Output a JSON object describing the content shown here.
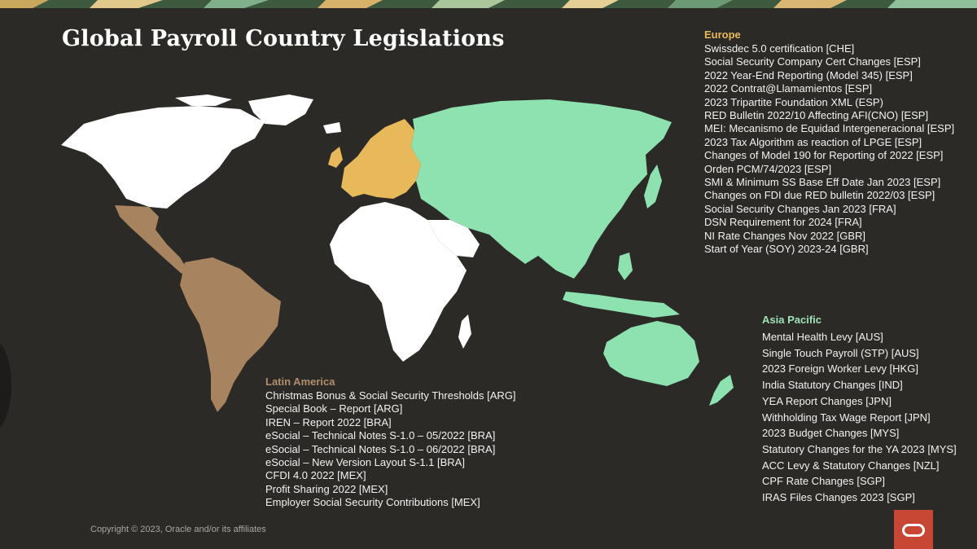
{
  "slide": {
    "title": "Global Payroll Country Legislations",
    "copyright": "Copyright © 2023, Oracle and/or its affiliates",
    "logo_icon": "oracle-logo-icon"
  },
  "colors": {
    "background": "#2b2a27",
    "europe": "#e8b95a",
    "latin_america": "#a7835f",
    "asia_pacific": "#8ee2b0",
    "other_land": "#ffffff",
    "oracle_red": "#c74634"
  },
  "regions": {
    "europe": {
      "heading": "Europe",
      "items": [
        "Swissdec 5.0 certification [CHE]",
        "Social Security Company Cert Changes [ESP]",
        "2022 Year-End Reporting (Model 345) [ESP]",
        "2022 Contrat@Llamamientos [ESP]",
        "2023 Tripartite Foundation XML (ESP)",
        "RED Bulletin 2022/10 Affecting AFI(CNO) [ESP]",
        "MEI: Mecanismo de Equidad Intergeneracional [ESP]",
        "2023 Tax Algorithm as reaction of LPGE [ESP]",
        "Changes of Model 190 for Reporting of 2022 [ESP]",
        "Orden PCM/74/2023 [ESP]",
        "SMI & Minimum SS Base Eff Date Jan 2023 [ESP]",
        "Changes on FDI due RED bulletin 2022/03 [ESP]",
        "Social Security Changes Jan 2023 [FRA]",
        "DSN Requirement for 2024 [FRA]",
        "NI Rate Changes Nov 2022 [GBR]",
        "Start of Year (SOY) 2023-24 [GBR]"
      ]
    },
    "latin_america": {
      "heading": "Latin America",
      "items": [
        "Christmas Bonus & Social Security Thresholds [ARG]",
        "Special Book – Report [ARG]",
        "IREN – Report 2022 [BRA]",
        "eSocial – Technical Notes S-1.0 – 05/2022 [BRA]",
        "eSocial – Technical Notes S-1.0 – 06/2022 [BRA]",
        "eSocial – New Version Layout S-1.1 [BRA]",
        "CFDI 4.0 2022 [MEX]",
        "Profit Sharing 2022 [MEX]",
        "Employer Social Security Contributions [MEX]"
      ]
    },
    "asia_pacific": {
      "heading": "Asia Pacific",
      "items": [
        "Mental Health Levy [AUS]",
        "Single Touch Payroll (STP) [AUS]",
        "2023 Foreign Worker Levy [HKG]",
        "India Statutory Changes [IND]",
        "YEA Report Changes [JPN]",
        "Withholding Tax Wage Report [JPN]",
        "2023 Budget Changes [MYS]",
        "Statutory Changes for the YA 2023 [MYS]",
        "ACC Levy & Statutory Changes [NZL]",
        "CPF Rate Changes [SGP]",
        "IRAS Files Changes 2023 [SGP]"
      ]
    }
  }
}
